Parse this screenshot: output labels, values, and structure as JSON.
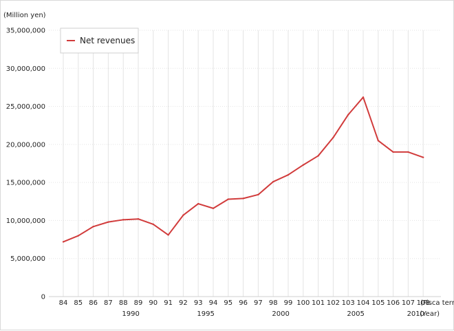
{
  "chart_data": {
    "type": "line",
    "unit_label": "(Million yen)",
    "x_axis_caption": "(Fisca term)",
    "year_axis_caption": "(Year)",
    "x": [
      "84",
      "85",
      "86",
      "87",
      "88",
      "89",
      "90",
      "91",
      "92",
      "93",
      "94",
      "95",
      "96",
      "97",
      "98",
      "99",
      "100",
      "101",
      "102",
      "103",
      "104",
      "105",
      "106",
      "107",
      "108"
    ],
    "year_labels": [
      {
        "after_term": "88",
        "label": "1990"
      },
      {
        "after_term": "93",
        "label": "1995"
      },
      {
        "after_term": "98",
        "label": "2000"
      },
      {
        "after_term": "103",
        "label": "2005"
      },
      {
        "after_term": "107",
        "label": "2010"
      }
    ],
    "ylim": [
      0,
      35000000
    ],
    "yticks": [
      0,
      5000000,
      10000000,
      15000000,
      20000000,
      25000000,
      30000000,
      35000000
    ],
    "ytick_labels": [
      "0",
      "5,000,000",
      "10,000,000",
      "15,000,000",
      "20,000,000",
      "25,000,000",
      "30,000,000",
      "35,000,000"
    ],
    "grid": true,
    "legend_position": "top-left",
    "series": [
      {
        "name": "Net revenues",
        "color": "#d13b3b",
        "values": [
          7200000,
          8000000,
          9200000,
          9800000,
          10100000,
          10200000,
          9500000,
          8100000,
          10700000,
          12200000,
          11600000,
          12800000,
          12900000,
          13400000,
          15100000,
          16000000,
          17300000,
          18500000,
          20900000,
          23900000,
          26200000,
          20500000,
          19000000,
          19000000,
          18300000
        ]
      }
    ]
  }
}
